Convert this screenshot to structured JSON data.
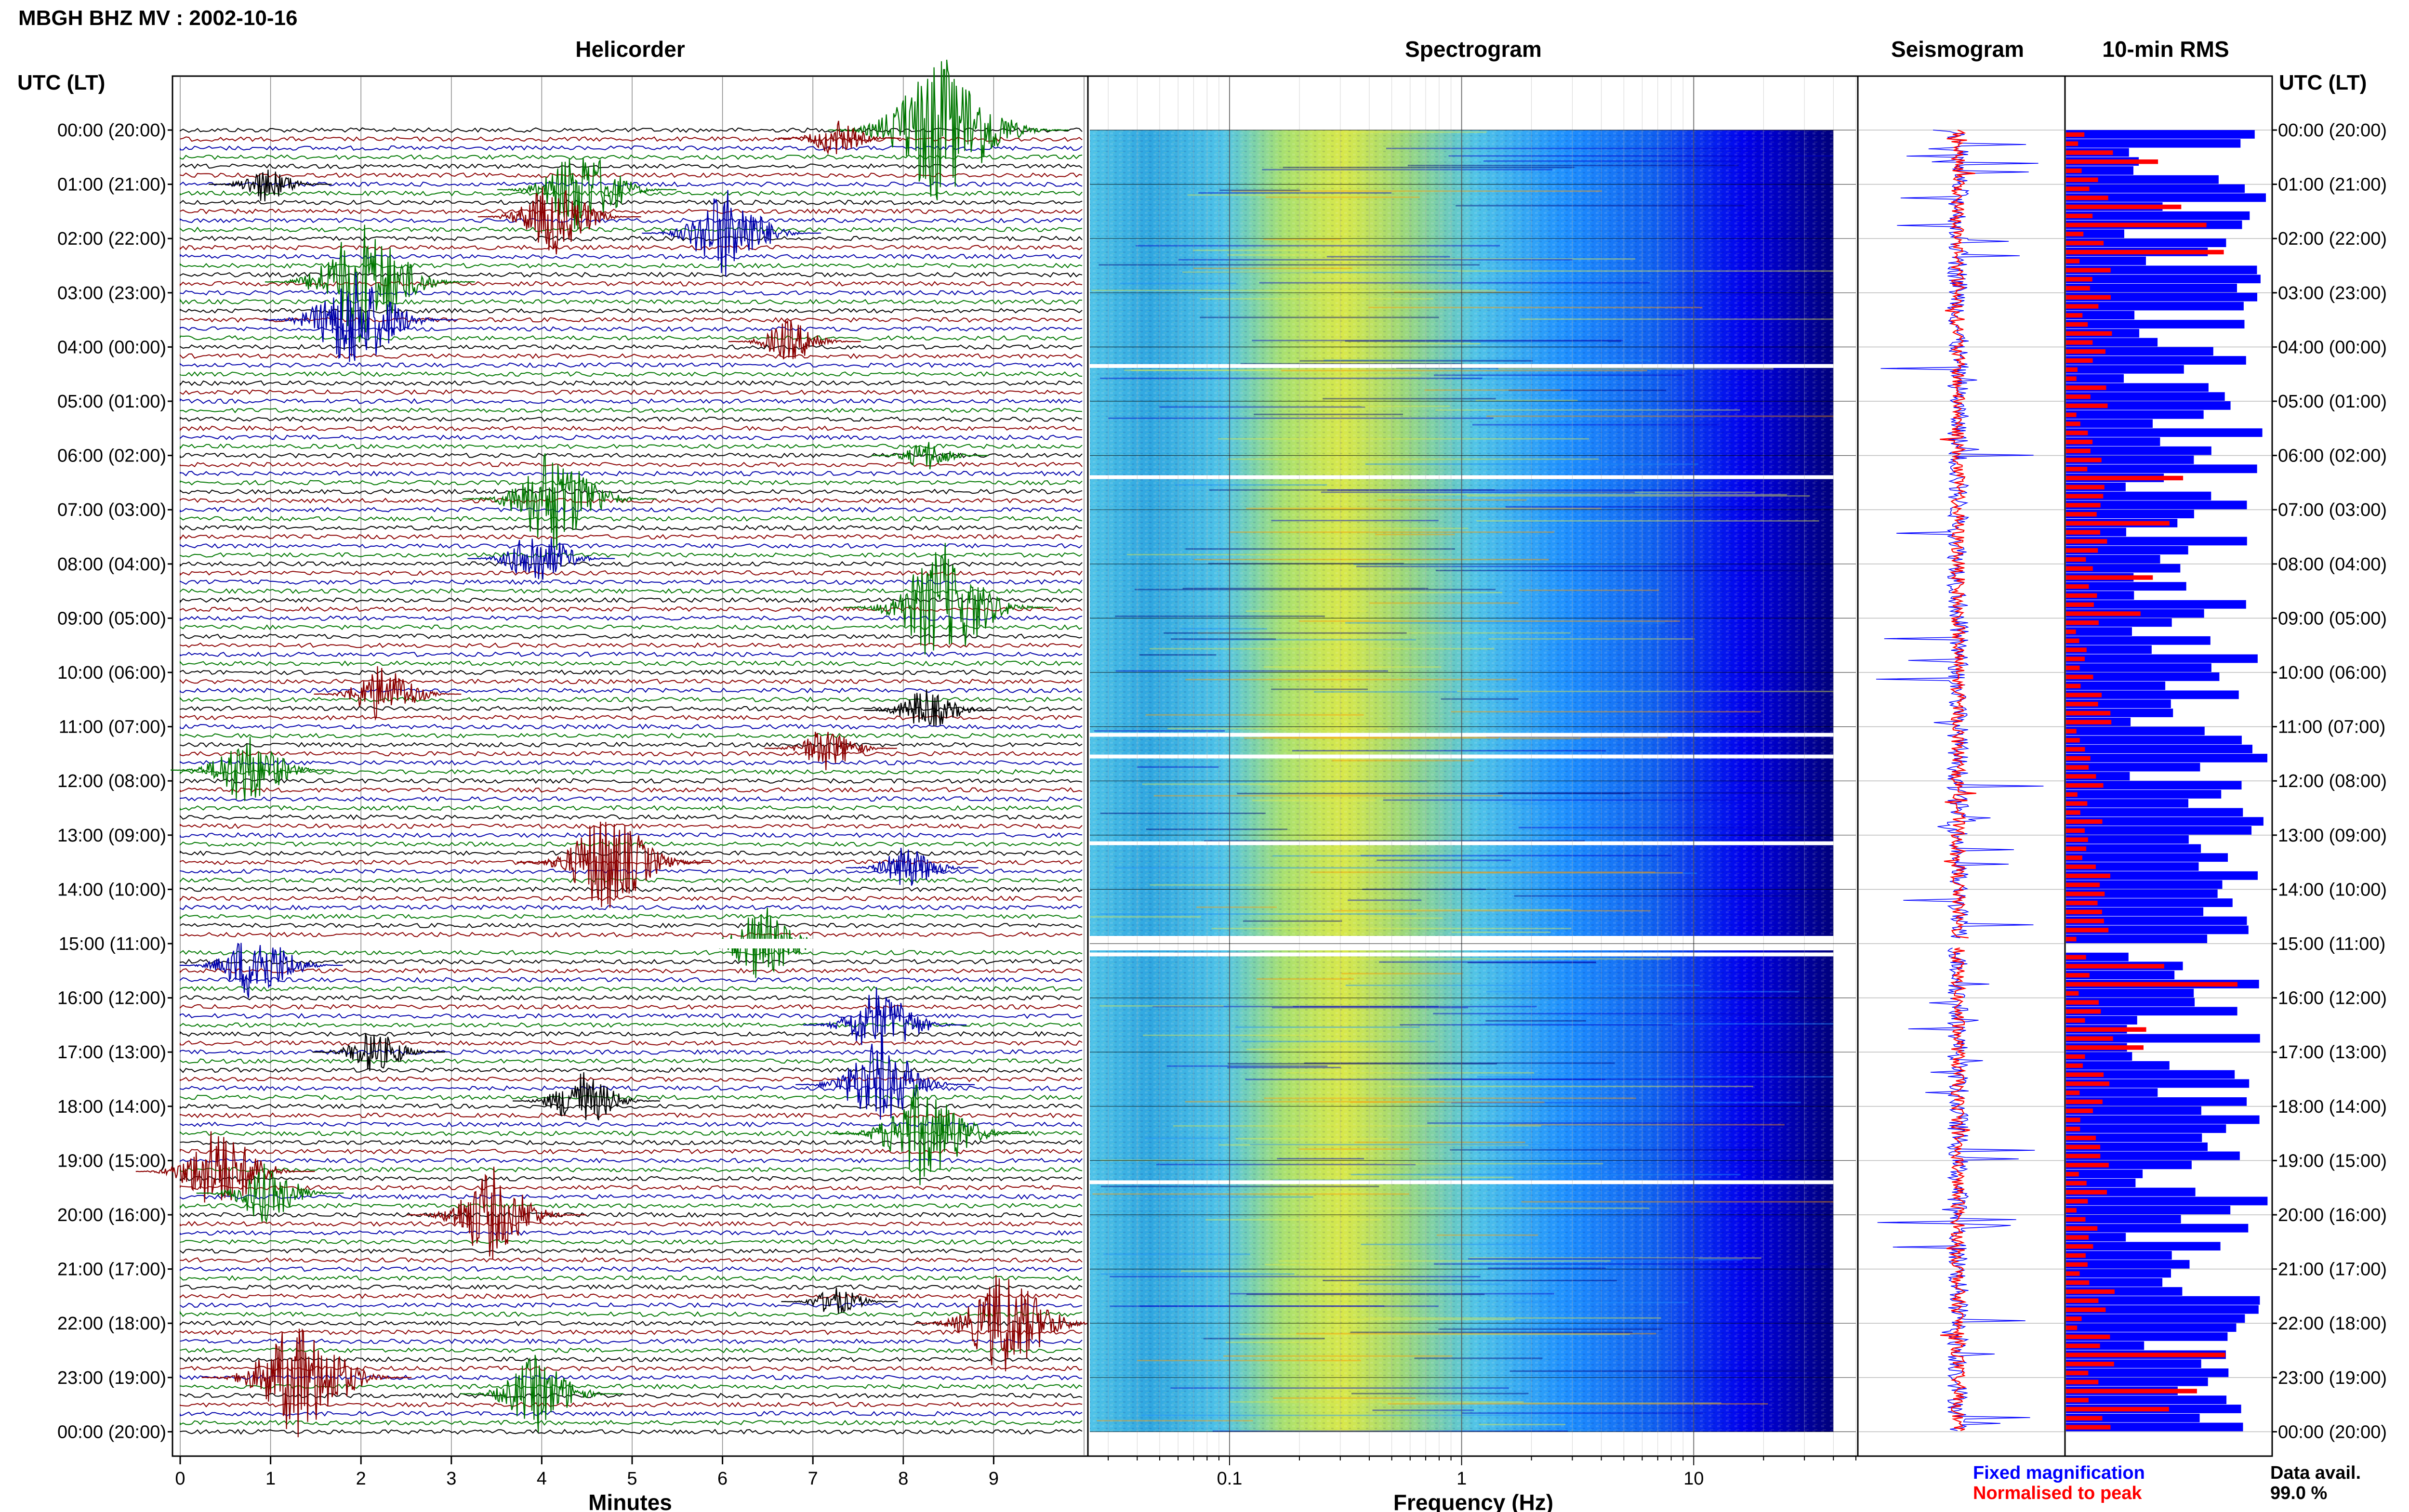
{
  "header": {
    "title": "MBGH BHZ MV : 2002-10-16",
    "utc_label_left": "UTC (LT)",
    "utc_label_right": "UTC (LT)"
  },
  "panels": {
    "helicorder": {
      "title": "Helicorder",
      "xlabel": "Minutes"
    },
    "spectrogram": {
      "title": "Spectrogram",
      "xlabel": "Frequency (Hz)"
    },
    "seismogram": {
      "title": "Seismogram"
    },
    "rms": {
      "title": "10-min RMS"
    }
  },
  "legend": {
    "fixed": "Fixed magnification",
    "normalised": "Normalised to peak",
    "fixed_color": "#0000ff",
    "normalised_color": "#ff0000"
  },
  "data_avail": {
    "label": "Data avail.",
    "value": "99.0 %"
  },
  "time_labels": [
    "00:00 (20:00)",
    "01:00 (21:00)",
    "02:00 (22:00)",
    "03:00 (23:00)",
    "04:00 (00:00)",
    "05:00 (01:00)",
    "06:00 (02:00)",
    "07:00 (03:00)",
    "08:00 (04:00)",
    "09:00 (05:00)",
    "10:00 (06:00)",
    "11:00 (07:00)",
    "12:00 (08:00)",
    "13:00 (09:00)",
    "14:00 (10:00)",
    "15:00 (11:00)",
    "16:00 (12:00)",
    "17:00 (13:00)",
    "18:00 (14:00)",
    "19:00 (15:00)",
    "20:00 (16:00)",
    "21:00 (17:00)",
    "22:00 (18:00)",
    "23:00 (19:00)",
    "00:00 (20:00)"
  ],
  "chart_data": [
    {
      "type": "line",
      "title": "Helicorder",
      "xlabel": "Minutes",
      "x_ticks": [
        "0",
        "1",
        "2",
        "3",
        "4",
        "5",
        "6",
        "7",
        "8",
        "9"
      ],
      "xlim": [
        0,
        10
      ],
      "rows_per_hour": 6,
      "trace_colors": [
        "#000000",
        "#8b0000",
        "#0000aa",
        "#007700"
      ],
      "gap_hour": 15,
      "events": [
        {
          "hour": 0.0,
          "minute": 8.5,
          "amp": 5.0,
          "color": "#007700"
        },
        {
          "hour": 0.15,
          "minute": 7.3,
          "amp": 1.2,
          "color": "#8b0000"
        },
        {
          "hour": 1.0,
          "minute": 1.0,
          "amp": 1.2,
          "color": "#000000"
        },
        {
          "hour": 1.1,
          "minute": 4.5,
          "amp": 3.0,
          "color": "#007700"
        },
        {
          "hour": 1.6,
          "minute": 4.2,
          "amp": 2.5,
          "color": "#8b0000"
        },
        {
          "hour": 1.9,
          "minute": 6.1,
          "amp": 3.0,
          "color": "#0000aa"
        },
        {
          "hour": 2.8,
          "minute": 2.1,
          "amp": 4.0,
          "color": "#007700"
        },
        {
          "hour": 3.5,
          "minute": 2.0,
          "amp": 3.5,
          "color": "#0000aa"
        },
        {
          "hour": 3.9,
          "minute": 6.8,
          "amp": 1.5,
          "color": "#8b0000"
        },
        {
          "hour": 6.0,
          "minute": 8.3,
          "amp": 1.0,
          "color": "#007700"
        },
        {
          "hour": 6.8,
          "minute": 4.2,
          "amp": 3.5,
          "color": "#007700"
        },
        {
          "hour": 7.9,
          "minute": 4.0,
          "amp": 2.0,
          "color": "#0000aa"
        },
        {
          "hour": 8.8,
          "minute": 8.5,
          "amp": 4.0,
          "color": "#007700"
        },
        {
          "hour": 10.4,
          "minute": 2.3,
          "amp": 2.0,
          "color": "#8b0000"
        },
        {
          "hour": 10.7,
          "minute": 8.3,
          "amp": 1.5,
          "color": "#000000"
        },
        {
          "hour": 11.4,
          "minute": 7.2,
          "amp": 1.5,
          "color": "#8b0000"
        },
        {
          "hour": 11.8,
          "minute": 0.8,
          "amp": 2.5,
          "color": "#007700"
        },
        {
          "hour": 13.5,
          "minute": 4.8,
          "amp": 3.5,
          "color": "#8b0000"
        },
        {
          "hour": 13.6,
          "minute": 8.1,
          "amp": 1.5,
          "color": "#0000aa"
        },
        {
          "hour": 15.0,
          "minute": 6.5,
          "amp": 2.5,
          "color": "#007700"
        },
        {
          "hour": 15.4,
          "minute": 0.9,
          "amp": 2.5,
          "color": "#0000aa"
        },
        {
          "hour": 16.5,
          "minute": 7.8,
          "amp": 2.5,
          "color": "#0000aa"
        },
        {
          "hour": 17.0,
          "minute": 2.2,
          "amp": 1.5,
          "color": "#000000"
        },
        {
          "hour": 17.6,
          "minute": 7.8,
          "amp": 3.0,
          "color": "#0000aa"
        },
        {
          "hour": 17.9,
          "minute": 4.5,
          "amp": 2.0,
          "color": "#000000"
        },
        {
          "hour": 18.5,
          "minute": 8.3,
          "amp": 3.5,
          "color": "#007700"
        },
        {
          "hour": 19.2,
          "minute": 0.5,
          "amp": 3.0,
          "color": "#8b0000"
        },
        {
          "hour": 19.6,
          "minute": 1.0,
          "amp": 2.0,
          "color": "#007700"
        },
        {
          "hour": 20.0,
          "minute": 3.5,
          "amp": 3.0,
          "color": "#8b0000"
        },
        {
          "hour": 21.6,
          "minute": 7.3,
          "amp": 1.0,
          "color": "#000000"
        },
        {
          "hour": 22.0,
          "minute": 9.2,
          "amp": 3.5,
          "color": "#8b0000"
        },
        {
          "hour": 23.0,
          "minute": 1.4,
          "amp": 4.0,
          "color": "#8b0000"
        },
        {
          "hour": 23.3,
          "minute": 4.0,
          "amp": 2.5,
          "color": "#007700"
        }
      ]
    },
    {
      "type": "heatmap",
      "title": "Spectrogram",
      "xlabel": "Frequency (Hz)",
      "x_scale": "log",
      "xlim": [
        0.025,
        50
      ],
      "x_ticks": [
        "0.1",
        "1",
        "10"
      ],
      "colormap": [
        "#00007a",
        "#0000ff",
        "#1e90ff",
        "#4fc3e8",
        "#a8e070",
        "#e0e84a"
      ],
      "data_cutoff_hz": 40,
      "gap_rows_hours": [
        4.35,
        6.4,
        11.15,
        11.55,
        13.15,
        14.9,
        15.2,
        19.4
      ]
    },
    {
      "type": "line",
      "title": "Seismogram",
      "series": [
        {
          "name": "Fixed magnification",
          "color": "#0000ff"
        },
        {
          "name": "Normalised to peak",
          "color": "#ff0000"
        }
      ]
    },
    {
      "type": "bar",
      "title": "10-min RMS",
      "orientation": "horizontal",
      "series": [
        {
          "name": "Fixed magnification",
          "color": "#0000ff"
        },
        {
          "name": "Normalised to peak",
          "color": "#ff0000"
        }
      ],
      "gap_hour": 15
    }
  ]
}
